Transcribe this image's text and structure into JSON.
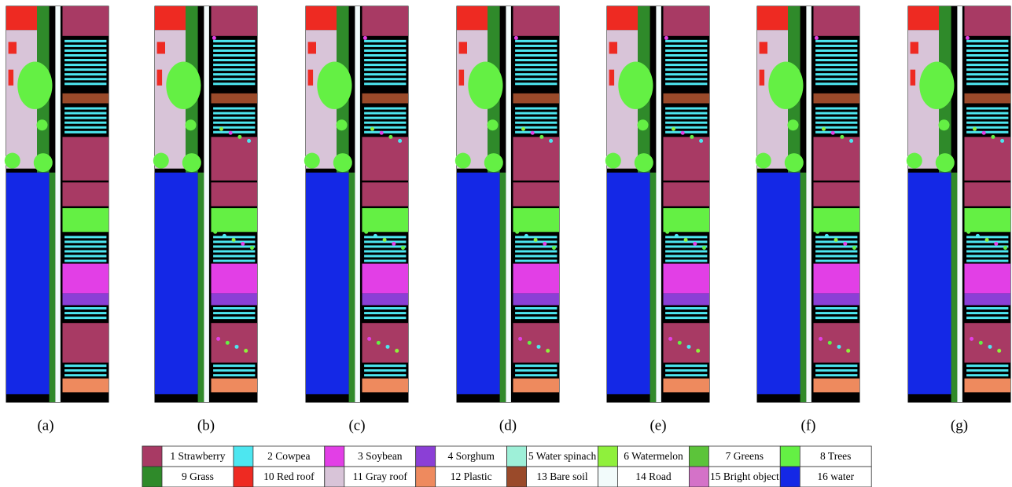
{
  "panels": [
    "(a)",
    "(b)",
    "(c)",
    "(d)",
    "(e)",
    "(f)",
    "(g)"
  ],
  "legend": [
    {
      "label": "1 Strawberry",
      "color": "#a83a64"
    },
    {
      "label": "2 Cowpea",
      "color": "#4de6f0"
    },
    {
      "label": "3 Soybean",
      "color": "#e23fe6"
    },
    {
      "label": "4 Sorghum",
      "color": "#8b3fd6"
    },
    {
      "label": "5 Water spinach",
      "color": "#9ef0d8"
    },
    {
      "label": "6 Watermelon",
      "color": "#8ff03c"
    },
    {
      "label": "7 Greens",
      "color": "#5cc43a"
    },
    {
      "label": "8 Trees",
      "color": "#64f044"
    },
    {
      "label": "9 Grass",
      "color": "#2f8a2a"
    },
    {
      "label": "10 Red roof",
      "color": "#ee2a22"
    },
    {
      "label": "11 Gray roof",
      "color": "#d8c4d8"
    },
    {
      "label": "12 Plastic",
      "color": "#ee8a5e"
    },
    {
      "label": "13 Bare soil",
      "color": "#9a4a2a"
    },
    {
      "label": "14 Road",
      "color": "#f2fbfb"
    },
    {
      "label": "15 Bright object",
      "color": "#d472c8"
    },
    {
      "label": "16 water",
      "color": "#1428e6"
    }
  ]
}
